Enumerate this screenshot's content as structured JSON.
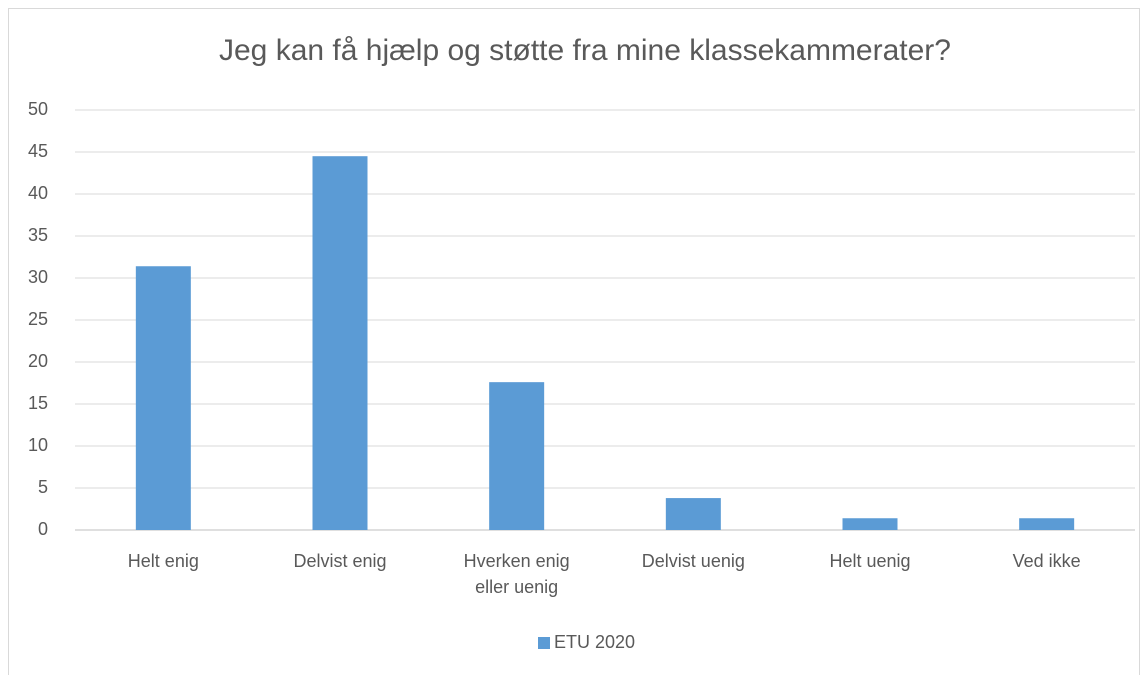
{
  "chart_data": {
    "type": "bar",
    "title": "Jeg kan få hjælp og støtte fra mine klassekammerater?",
    "categories": [
      "Helt enig",
      "Delvist enig",
      "Hverken enig eller uenig",
      "Delvist uenig",
      "Helt uenig",
      "Ved ikke"
    ],
    "series": [
      {
        "name": "ETU 2020",
        "color": "#5b9bd5",
        "values": [
          31.4,
          44.5,
          17.6,
          3.8,
          1.4,
          1.4
        ]
      }
    ],
    "ylim": [
      0,
      50
    ],
    "yticks": [
      0,
      5,
      10,
      15,
      20,
      25,
      30,
      35,
      40,
      45,
      50
    ],
    "grid": true,
    "legend": "bottom"
  }
}
